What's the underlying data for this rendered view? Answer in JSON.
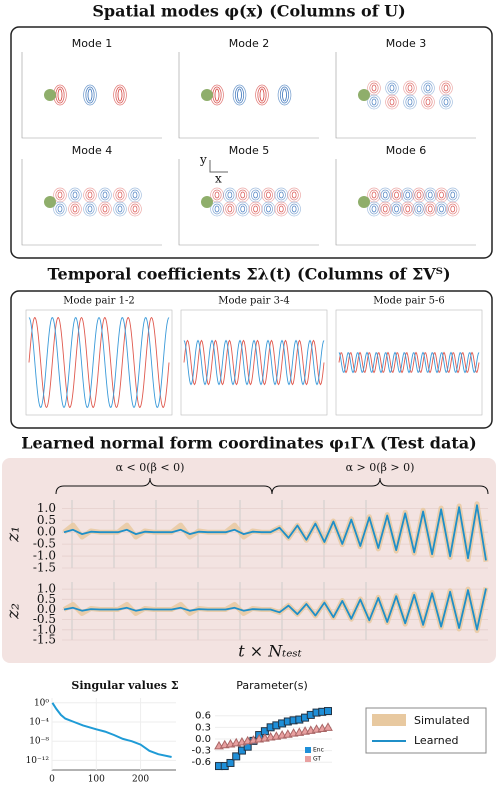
{
  "figure": {
    "spatial": {
      "title": "Spatial modes φ(x) (Columns of U)",
      "modes": [
        "Mode 1",
        "Mode 2",
        "Mode 3",
        "Mode 4",
        "Mode 5",
        "Mode 6"
      ],
      "axis_y": "y",
      "axis_x": "x"
    },
    "temporal": {
      "title": "Temporal coefficients Σλ(t) (Columns of ΣVᵀ)",
      "panels": [
        "Mode pair 1-2",
        "Mode pair 3-4",
        "Mode pair 5-6"
      ]
    },
    "learned": {
      "title": "Learned normal form coordinates φ₁ΓΛ (Test data)",
      "left": "α < 0(β < 0)",
      "right": "α > 0(β > 0)",
      "xlabel": "t × Nₜₑₛₜ"
    }
  },
  "chart_data": [
    {
      "type": "line",
      "ylabel": "z₁",
      "ylim": [
        -1.5,
        1.35
      ],
      "yticks": [
        {
          "value": 1,
          "label": "1.0"
        },
        {
          "value": 0.5,
          "label": "0.5"
        },
        {
          "value": 0,
          "label": "0.0"
        },
        {
          "value": -0.5,
          "label": "-0.5"
        },
        {
          "value": -1,
          "label": "-1.0"
        },
        {
          "value": -1.5,
          "label": "-1.5"
        }
      ],
      "series": [
        {
          "name": "Simulated",
          "color": "#e8c9a0",
          "values": [
            0,
            0.3,
            -0.2,
            0.05,
            0,
            0,
            0,
            0.3,
            -0.2,
            0.05,
            0,
            0,
            0,
            0.3,
            -0.2,
            0.05,
            0,
            0,
            0,
            0.3,
            -0.2,
            0.05,
            0,
            0,
            0.2,
            -0.25,
            0.29,
            -0.34,
            0.38,
            -0.43,
            0.47,
            -0.52,
            0.56,
            -0.61,
            0.65,
            -0.7,
            0.74,
            -0.79,
            0.83,
            -0.88,
            0.92,
            -0.97,
            1.01,
            -1.06,
            1.1,
            -1.15,
            1.19,
            -1.24
          ]
        },
        {
          "name": "Learned",
          "color": "#1f8fc8",
          "values": [
            0,
            0.1,
            -0.08,
            0.02,
            0,
            0,
            0,
            0.1,
            -0.08,
            0.02,
            0,
            0,
            0,
            0.1,
            -0.08,
            0.02,
            0,
            0,
            0,
            0.1,
            -0.08,
            0.02,
            0,
            0,
            0.19,
            -0.24,
            0.28,
            -0.32,
            0.36,
            -0.41,
            0.45,
            -0.49,
            0.53,
            -0.58,
            0.62,
            -0.66,
            0.7,
            -0.75,
            0.79,
            -0.84,
            0.87,
            -0.92,
            0.96,
            -1.01,
            1.05,
            -1.09,
            1.13,
            -1.18
          ]
        }
      ]
    },
    {
      "type": "line",
      "ylabel": "z₂",
      "ylim": [
        -1.5,
        1.35
      ],
      "yticks": [
        {
          "value": 1,
          "label": "1.0"
        },
        {
          "value": 0.5,
          "label": "0.5"
        },
        {
          "value": 0,
          "label": "0.0"
        },
        {
          "value": -0.5,
          "label": "-0.5"
        },
        {
          "value": -1,
          "label": "-1.0"
        },
        {
          "value": -1.5,
          "label": "-1.5"
        }
      ],
      "series": [
        {
          "name": "Simulated",
          "color": "#e8c9a0",
          "values": [
            0,
            0.25,
            -0.2,
            0.05,
            0,
            0,
            0,
            0.25,
            -0.2,
            0.05,
            0,
            0,
            0,
            0.25,
            -0.2,
            0.05,
            0,
            0,
            0,
            0.25,
            -0.2,
            0.05,
            0,
            0,
            -0.15,
            0.2,
            -0.24,
            0.28,
            -0.32,
            0.36,
            -0.4,
            0.44,
            -0.48,
            0.52,
            -0.56,
            0.6,
            -0.64,
            0.68,
            -0.72,
            0.76,
            -0.8,
            0.84,
            -0.88,
            0.92,
            -0.96,
            1,
            -1.04,
            1.08
          ]
        },
        {
          "name": "Learned",
          "color": "#1f8fc8",
          "values": [
            0,
            0.08,
            -0.06,
            0.02,
            0,
            0,
            0,
            0.08,
            -0.06,
            0.02,
            0,
            0,
            0,
            0.08,
            -0.06,
            0.02,
            0,
            0,
            0,
            0.08,
            -0.06,
            0.02,
            0,
            0,
            -0.14,
            0.19,
            -0.23,
            0.27,
            -0.3,
            0.34,
            -0.38,
            0.42,
            -0.46,
            0.49,
            -0.53,
            0.57,
            -0.61,
            0.65,
            -0.68,
            0.72,
            -0.76,
            0.8,
            -0.84,
            0.87,
            -0.91,
            0.95,
            -0.99,
            1.03
          ]
        }
      ]
    },
    {
      "type": "logline",
      "title": "Singular values Σ",
      "color": "#1f9bd6",
      "log_y": true,
      "ylim": [
        1e-14,
        10
      ],
      "xlim": [
        0,
        280
      ],
      "xticks": [
        0,
        100,
        200
      ],
      "yticks": [
        {
          "value": 1,
          "label": "10⁰"
        },
        {
          "value": 0.0001,
          "label": "10⁻⁴"
        },
        {
          "value": 1e-08,
          "label": "10⁻⁸"
        },
        {
          "value": 1e-12,
          "label": "10⁻¹²"
        }
      ],
      "x": [
        1,
        10,
        20,
        30,
        50,
        70,
        100,
        120,
        140,
        160,
        180,
        200,
        220,
        240,
        270
      ],
      "values": [
        1,
        0.05,
        0.003,
        0.0005,
        0.0001,
        2e-05,
        3e-06,
        1e-06,
        2e-07,
        3e-08,
        1e-08,
        2e-09,
        1e-10,
        2e-11,
        5e-12
      ]
    },
    {
      "type": "scatter",
      "title": "Parameter(s)",
      "ylim": [
        -0.75,
        0.85
      ],
      "yticks": [
        {
          "value": 0.6,
          "label": "0.6"
        },
        {
          "value": 0.3,
          "label": "0.3"
        },
        {
          "value": 0,
          "label": "0.0"
        },
        {
          "value": -0.3,
          "label": "-0.3"
        },
        {
          "value": -0.6,
          "label": "-0.6"
        }
      ],
      "series": [
        {
          "name": "Enc",
          "color": "#1f8fd8",
          "values": [
            -0.7,
            -0.7,
            -0.62,
            -0.45,
            -0.3,
            -0.2,
            -0.05,
            0.1,
            0.2,
            0.3,
            0.35,
            0.4,
            0.45,
            0.48,
            0.5,
            0.55,
            0.62,
            0.68,
            0.7,
            0.72
          ]
        },
        {
          "name": "GT",
          "color": "#e8a0a0",
          "values": [
            -0.18,
            -0.15,
            -0.13,
            -0.1,
            -0.08,
            -0.05,
            -0.03,
            0,
            0.02,
            0.05,
            0.07,
            0.1,
            0.12,
            0.15,
            0.17,
            0.2,
            0.22,
            0.25,
            0.27,
            0.3
          ]
        }
      ]
    }
  ]
}
